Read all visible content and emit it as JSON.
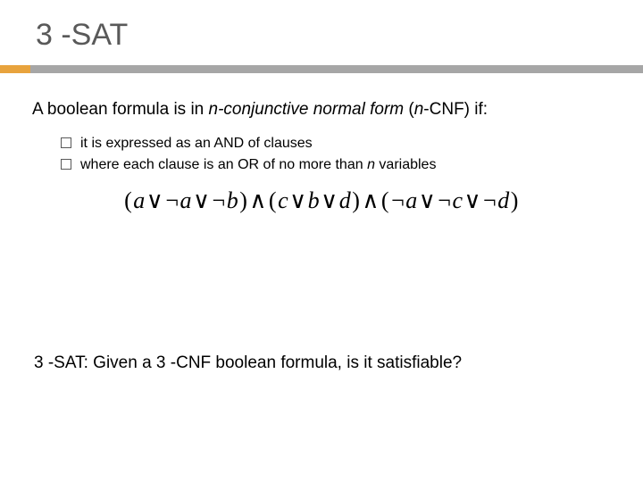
{
  "title": "3 -SAT",
  "intro": {
    "prefix": "A boolean formula is in ",
    "em1": "n-conjunctive normal form",
    "mid": " (",
    "em2": "n",
    "suffix": "-CNF) if:"
  },
  "bullets": [
    {
      "text": "it is expressed as an AND of clauses"
    },
    {
      "prefix": "where each clause is an OR of no more than ",
      "em": "n",
      "suffix": " variables"
    }
  ],
  "formula": {
    "lp1": "(",
    "a1": "a",
    "or1": "∨",
    "n1": "¬",
    "a2": "a",
    "or2": "∨",
    "n2": "¬",
    "b1": "b",
    "rp1": ")",
    "and1": "∧",
    "lp2": "(",
    "c1": "c",
    "or3": "∨",
    "b2": "b",
    "or4": "∨",
    "d1": "d",
    "rp2": ")",
    "and2": "∧",
    "lp3": "(",
    "n3": "¬",
    "a3": "a",
    "or5": "∨",
    "n4": "¬",
    "c2": "c",
    "or6": "∨",
    "n5": "¬",
    "d2": "d",
    "rp3": ")"
  },
  "footer": "3 -SAT: Given a 3 -CNF boolean formula, is it satisfiable?",
  "colors": {
    "rule_gray": "#a6a6a6",
    "rule_accent": "#e8a33d",
    "title_color": "#595959",
    "text_color": "#000000",
    "background": "#ffffff"
  },
  "typography": {
    "title_fontsize": 34,
    "body_fontsize": 19,
    "bullet_fontsize": 16,
    "formula_fontsize": 26
  }
}
